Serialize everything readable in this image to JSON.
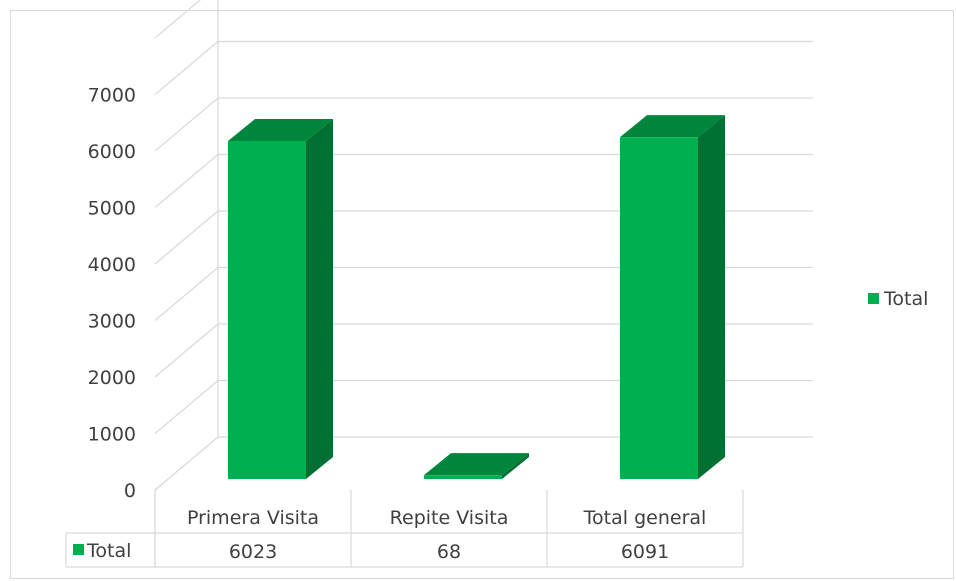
{
  "chart_data": {
    "type": "bar",
    "categories": [
      "Primera Visita",
      "Repite Visita",
      "Total general"
    ],
    "series": [
      {
        "name": "Total",
        "values": [
          6023,
          68,
          6091
        ]
      }
    ],
    "data_table_values": [
      "6023",
      "68",
      "6091"
    ],
    "yticks": [
      "0",
      "1000",
      "2000",
      "3000",
      "4000",
      "5000",
      "6000",
      "7000"
    ],
    "ylim": [
      0,
      8000
    ],
    "grid": true,
    "three_d": true,
    "legend": {
      "position": "right",
      "label": "Total"
    },
    "data_table": true,
    "colors": {
      "bar_front": "#00b050",
      "bar_side": "#007032",
      "bar_top": "#00863c",
      "grid": "#d9d9d9"
    }
  }
}
